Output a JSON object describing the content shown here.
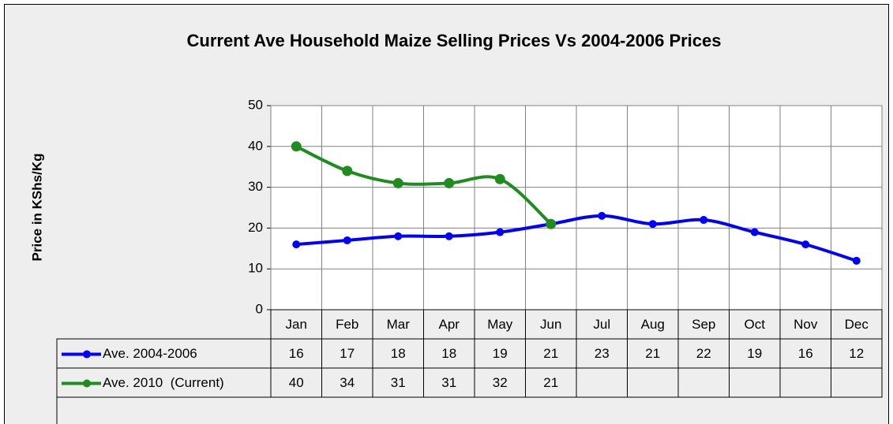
{
  "chart_data": {
    "type": "line",
    "title": "Current Ave Household Maize Selling Prices Vs 2004-2006 Prices",
    "y_label": "Price in KShs/Kg",
    "categories": [
      "Jan",
      "Feb",
      "Mar",
      "Apr",
      "May",
      "Jun",
      "Jul",
      "Aug",
      "Sep",
      "Oct",
      "Nov",
      "Dec"
    ],
    "series": [
      {
        "name": "Ave. 2004-2006",
        "color": "#0000ff",
        "values": [
          16,
          17,
          18,
          18,
          19,
          21,
          23,
          21,
          22,
          19,
          16,
          12
        ]
      },
      {
        "name": "Ave. 2010  (Current)",
        "color": "#1e8c1e",
        "values": [
          40,
          34,
          31,
          31,
          32,
          21,
          null,
          null,
          null,
          null,
          null,
          null
        ]
      }
    ],
    "ylim": [
      0,
      50
    ],
    "yticks": [
      0,
      10,
      20,
      30,
      40,
      50
    ],
    "grid": true,
    "smooth": true,
    "data_table": true
  }
}
